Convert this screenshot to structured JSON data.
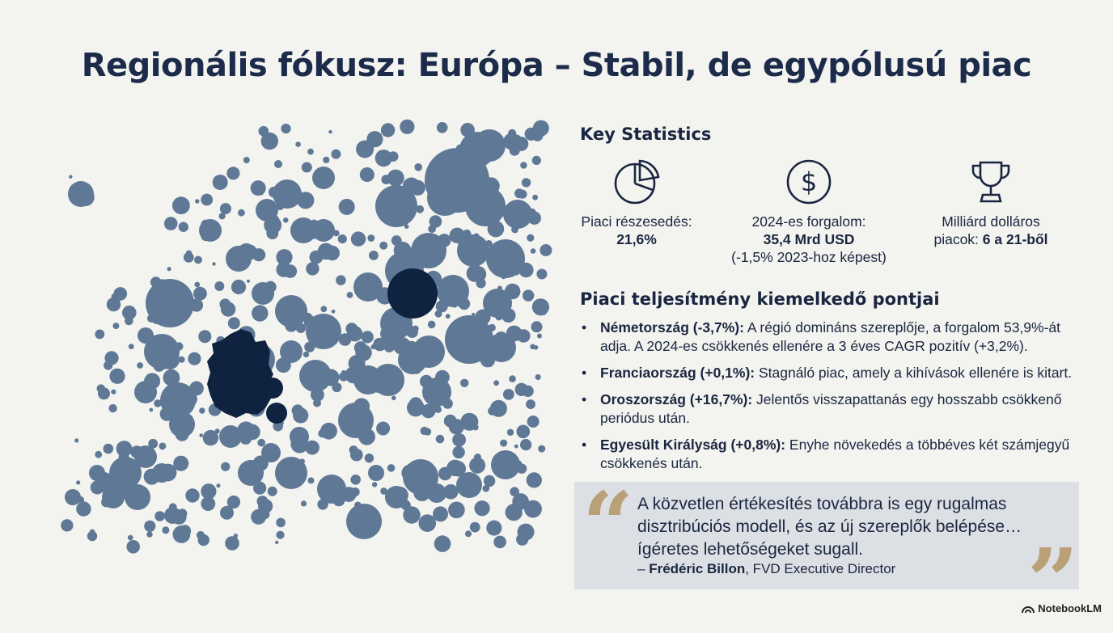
{
  "title": "Regionális fókusz: Európa – Stabil, de egypólusú piac",
  "key_stats": {
    "heading": "Key Statistics",
    "items": [
      {
        "icon": "pie-chart-icon",
        "label": "Piaci részesedés:",
        "value": "21,6%",
        "note": ""
      },
      {
        "icon": "dollar-icon",
        "label": "2024-es forgalom:",
        "value": "35,4 Mrd USD",
        "note": "(-1,5% 2023-hoz képest)"
      },
      {
        "icon": "trophy-icon",
        "label_line1": "Milliárd dolláros",
        "label_line2": "piacok:",
        "value": "6 a 21-ből"
      }
    ]
  },
  "highlights": {
    "heading": "Piaci teljesítmény kiemelkedő pontjai",
    "items": [
      {
        "bold": "Németország (-3,7%):",
        "text": " A régió domináns szereplője, a forgalom 53,9%-át adja. A 2024-es csökkenés ellenére a 3 éves CAGR pozitív (+3,2%)."
      },
      {
        "bold": "Franciaország (+0,1%):",
        "text": " Stagnáló piac, amely a kihívások ellenére is kitart."
      },
      {
        "bold": "Oroszország (+16,7%):",
        "text": " Jelentős visszapattanás egy hosszabb csökkenő periódus után."
      },
      {
        "bold": "Egyesült Királyság (+0,8%):",
        "text": " Enyhe növekedés a többéves két számjegyű csökkenés után."
      }
    ]
  },
  "quote": {
    "text": "A közvetlen értékesítés továbbra is egy rugalmas disztribúciós modell, és az új szereplők belépése… ígéretes lehetőségeket sugall.",
    "author": "Frédéric Billon",
    "role": ", FVD Executive Director",
    "dash": "–",
    "open_mark": "“",
    "close_mark": "”"
  },
  "bullet_char": "•",
  "brand": "NotebookLM",
  "colors": {
    "background": "#f3f3ef",
    "bubble": "#5f7896",
    "highlight": "#0f2340",
    "quote_box": "#dcdfe3",
    "quote_marks": "#b9a076"
  }
}
